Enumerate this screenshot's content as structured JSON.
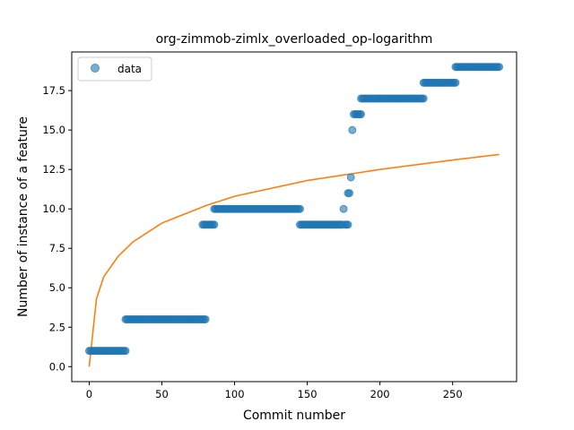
{
  "chart_data": {
    "type": "scatter",
    "title": "org-zimmob-zimlx_overloaded_op-logarithm",
    "xlabel": "Commit number",
    "ylabel": "Number of instance of a feature",
    "xlim": [
      -12,
      294
    ],
    "ylim": [
      -0.95,
      19.95
    ],
    "xticks": [
      0,
      50,
      100,
      150,
      200,
      250
    ],
    "xtick_labels": [
      "0",
      "50",
      "100",
      "150",
      "200",
      "250"
    ],
    "yticks": [
      0.0,
      2.5,
      5.0,
      7.5,
      10.0,
      12.5,
      15.0,
      17.5
    ],
    "ytick_labels": [
      "0.0",
      "2.5",
      "5.0",
      "7.5",
      "10.0",
      "12.5",
      "15.0",
      "17.5"
    ],
    "grid": false,
    "legend": {
      "placement": "top-left",
      "entries": [
        "data"
      ]
    },
    "colors": {
      "data": "#1f77b4",
      "fit": "#ff7f0e"
    },
    "data_runs": [
      {
        "x_start": 0,
        "x_end": 25,
        "y": 1
      },
      {
        "x_start": 25,
        "x_end": 80,
        "y": 3
      },
      {
        "x_start": 78,
        "x_end": 86,
        "y": 9
      },
      {
        "x_start": 86,
        "x_end": 145,
        "y": 10
      },
      {
        "x_start": 145,
        "x_end": 174,
        "y": 9
      },
      {
        "x_start": 175,
        "x_end": 175,
        "y": 10
      },
      {
        "x_start": 176,
        "x_end": 178,
        "y": 9
      },
      {
        "x_start": 178,
        "x_end": 179,
        "y": 11
      },
      {
        "x_start": 180,
        "x_end": 180,
        "y": 12
      },
      {
        "x_start": 181,
        "x_end": 181,
        "y": 15
      },
      {
        "x_start": 182,
        "x_end": 187,
        "y": 16
      },
      {
        "x_start": 187,
        "x_end": 230,
        "y": 17
      },
      {
        "x_start": 230,
        "x_end": 252,
        "y": 18
      },
      {
        "x_start": 252,
        "x_end": 282,
        "y": 19
      }
    ],
    "fit": {
      "name": "logarithm",
      "x_start": 0,
      "x_end": 282,
      "samples": [
        [
          0,
          0.0
        ],
        [
          5,
          4.3
        ],
        [
          10,
          5.7
        ],
        [
          20,
          7.0
        ],
        [
          30,
          7.9
        ],
        [
          50,
          9.1
        ],
        [
          80,
          10.2
        ],
        [
          100,
          10.8
        ],
        [
          150,
          11.8
        ],
        [
          200,
          12.5
        ],
        [
          250,
          13.1
        ],
        [
          282,
          13.45
        ]
      ]
    }
  }
}
